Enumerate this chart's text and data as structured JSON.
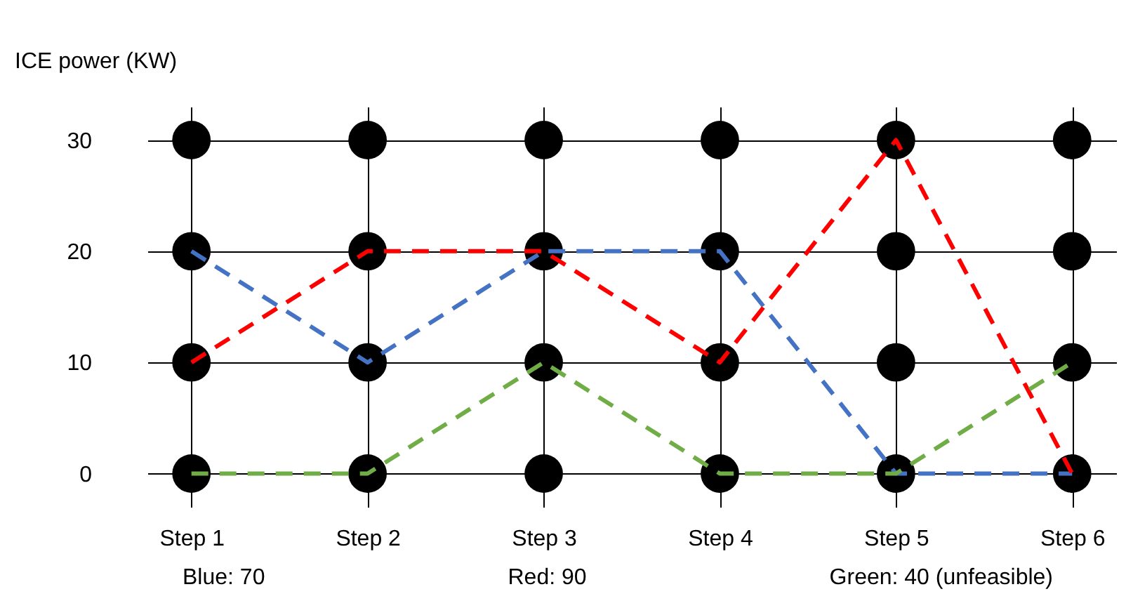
{
  "chart_data": {
    "type": "line",
    "ylabel": "ICE power (KW)",
    "categories": [
      "Step 1",
      "Step 2",
      "Step 3",
      "Step 4",
      "Step 5",
      "Step 6"
    ],
    "series": [
      {
        "type": "scatter",
        "color": "#000000",
        "marker": "circle",
        "x": [
          "Step 1",
          "Step 1",
          "Step 1",
          "Step 1",
          "Step 2",
          "Step 2",
          "Step 2",
          "Step 2",
          "Step 3",
          "Step 3",
          "Step 3",
          "Step 3",
          "Step 4",
          "Step 4",
          "Step 4",
          "Step 4",
          "Step 5",
          "Step 5",
          "Step 5",
          "Step 5",
          "Step 6",
          "Step 6",
          "Step 6",
          "Step 6"
        ],
        "values": [
          0,
          10,
          20,
          30,
          0,
          10,
          20,
          30,
          0,
          10,
          20,
          30,
          0,
          10,
          20,
          30,
          0,
          10,
          20,
          30,
          0,
          10,
          20,
          30
        ]
      },
      {
        "color": "#4472c4",
        "values": [
          20,
          10,
          20,
          20,
          0,
          0
        ]
      },
      {
        "color": "#ff0000",
        "values": [
          10,
          20,
          20,
          10,
          30,
          0
        ]
      },
      {
        "color": "#70ad47",
        "values": [
          0,
          0,
          10,
          0,
          0,
          10
        ]
      }
    ],
    "ylim": [
      -3,
      33
    ],
    "yticks": [
      0,
      10,
      20,
      30
    ],
    "grid": true,
    "line_style": "dashed",
    "annotations": [
      "Blue: 70",
      "Red: 90",
      "Green: 40 (unfeasible)"
    ]
  }
}
